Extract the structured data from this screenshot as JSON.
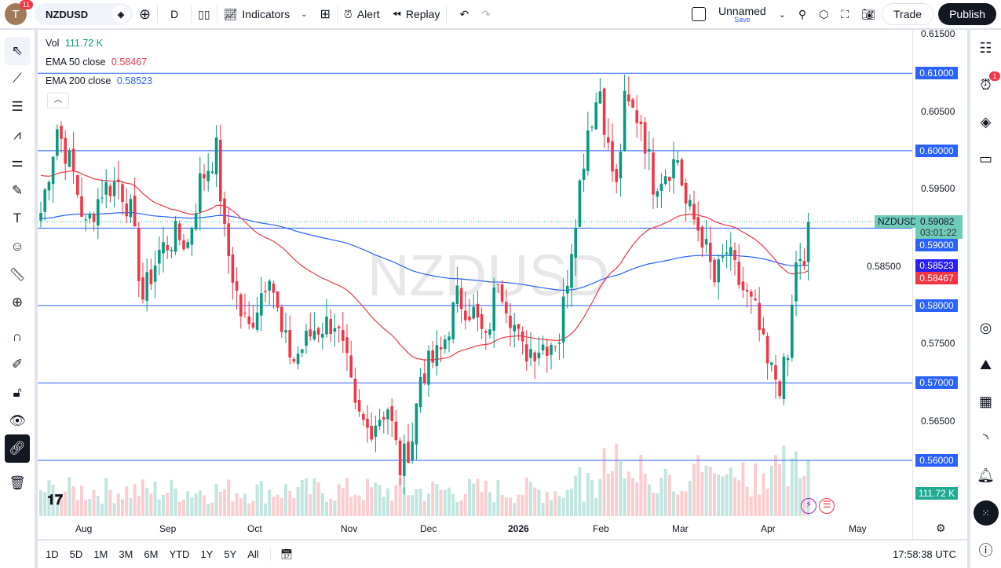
{
  "toolbar": {
    "avatar_letter": "T",
    "notif_count": "11",
    "symbol": "NZDUSD",
    "interval": "D",
    "indicators": "Indicators",
    "alert": "Alert",
    "replay": "Replay",
    "layout_name": "Unnamed",
    "save": "Save",
    "trade": "Trade",
    "publish": "Publish"
  },
  "legend": {
    "vol_label": "Vol",
    "vol_value": "111.72 K",
    "ema50_label": "EMA 50 close",
    "ema50_value": "0.58467",
    "ema200_label": "EMA 200 close",
    "ema200_value": "0.58523"
  },
  "watermark": "NZDUSD",
  "price_axis": [
    "0.61500",
    "0.60500",
    "0.59500",
    "0.58500",
    "0.57500",
    "0.56500"
  ],
  "hlines": [
    {
      "price": 0.61,
      "label": "0.61000"
    },
    {
      "price": 0.6,
      "label": "0.60000"
    },
    {
      "price": 0.59,
      "label": "0.59000"
    },
    {
      "price": 0.58,
      "label": "0.58000"
    },
    {
      "price": 0.57,
      "label": "0.57000"
    },
    {
      "price": 0.56,
      "label": "0.56000"
    }
  ],
  "last": {
    "symbol": "NZDUSD",
    "price": "0.59082",
    "countdown": "03:01:22",
    "ema200": "0.58523",
    "ema50": "0.58467",
    "volume": "111.72 K"
  },
  "time_axis": [
    "Aug",
    "Sep",
    "Oct",
    "Nov",
    "Dec",
    "2026",
    "Feb",
    "Mar",
    "Apr",
    "May"
  ],
  "price_path": [
    [
      0,
      0.592
    ],
    [
      4,
      0.603
    ],
    [
      8,
      0.597
    ],
    [
      11,
      0.59
    ],
    [
      15,
      0.595
    ],
    [
      19,
      0.596
    ],
    [
      22,
      0.592
    ],
    [
      25,
      0.581
    ],
    [
      29,
      0.587
    ],
    [
      33,
      0.589
    ],
    [
      36,
      0.588
    ],
    [
      39,
      0.596
    ],
    [
      43,
      0.6
    ],
    [
      45,
      0.589
    ],
    [
      49,
      0.579
    ],
    [
      51,
      0.577
    ],
    [
      56,
      0.585
    ],
    [
      59,
      0.576
    ],
    [
      62,
      0.573
    ],
    [
      67,
      0.577
    ],
    [
      72,
      0.578
    ],
    [
      75,
      0.572
    ],
    [
      77,
      0.566
    ],
    [
      80,
      0.564
    ],
    [
      85,
      0.567
    ],
    [
      88,
      0.559
    ],
    [
      91,
      0.563
    ],
    [
      93,
      0.571
    ],
    [
      98,
      0.574
    ],
    [
      102,
      0.581
    ],
    [
      106,
      0.579
    ],
    [
      109,
      0.575
    ],
    [
      112,
      0.584
    ],
    [
      115,
      0.579
    ],
    [
      118,
      0.574
    ],
    [
      123,
      0.575
    ],
    [
      127,
      0.576
    ],
    [
      131,
      0.592
    ],
    [
      134,
      0.603
    ],
    [
      137,
      0.608
    ],
    [
      139,
      0.6
    ],
    [
      141,
      0.595
    ],
    [
      143,
      0.606
    ],
    [
      147,
      0.604
    ],
    [
      150,
      0.596
    ],
    [
      156,
      0.599
    ],
    [
      158,
      0.593
    ],
    [
      162,
      0.589
    ],
    [
      165,
      0.583
    ],
    [
      168,
      0.587
    ],
    [
      171,
      0.583
    ],
    [
      175,
      0.579
    ],
    [
      178,
      0.572
    ],
    [
      181,
      0.57
    ],
    [
      183,
      0.573
    ],
    [
      185,
      0.586
    ],
    [
      187,
      0.584
    ],
    [
      188,
      0.5908
    ]
  ],
  "bottom": {
    "ranges": [
      "1D",
      "5D",
      "1M",
      "3M",
      "6M",
      "YTD",
      "1Y",
      "5Y",
      "All"
    ],
    "clock": "17:58:38 UTC"
  },
  "colors": {
    "up": "#089981",
    "down": "#f23645",
    "ema50": "#f23645",
    "ema200": "#2962ff",
    "hline": "#2962ff"
  }
}
